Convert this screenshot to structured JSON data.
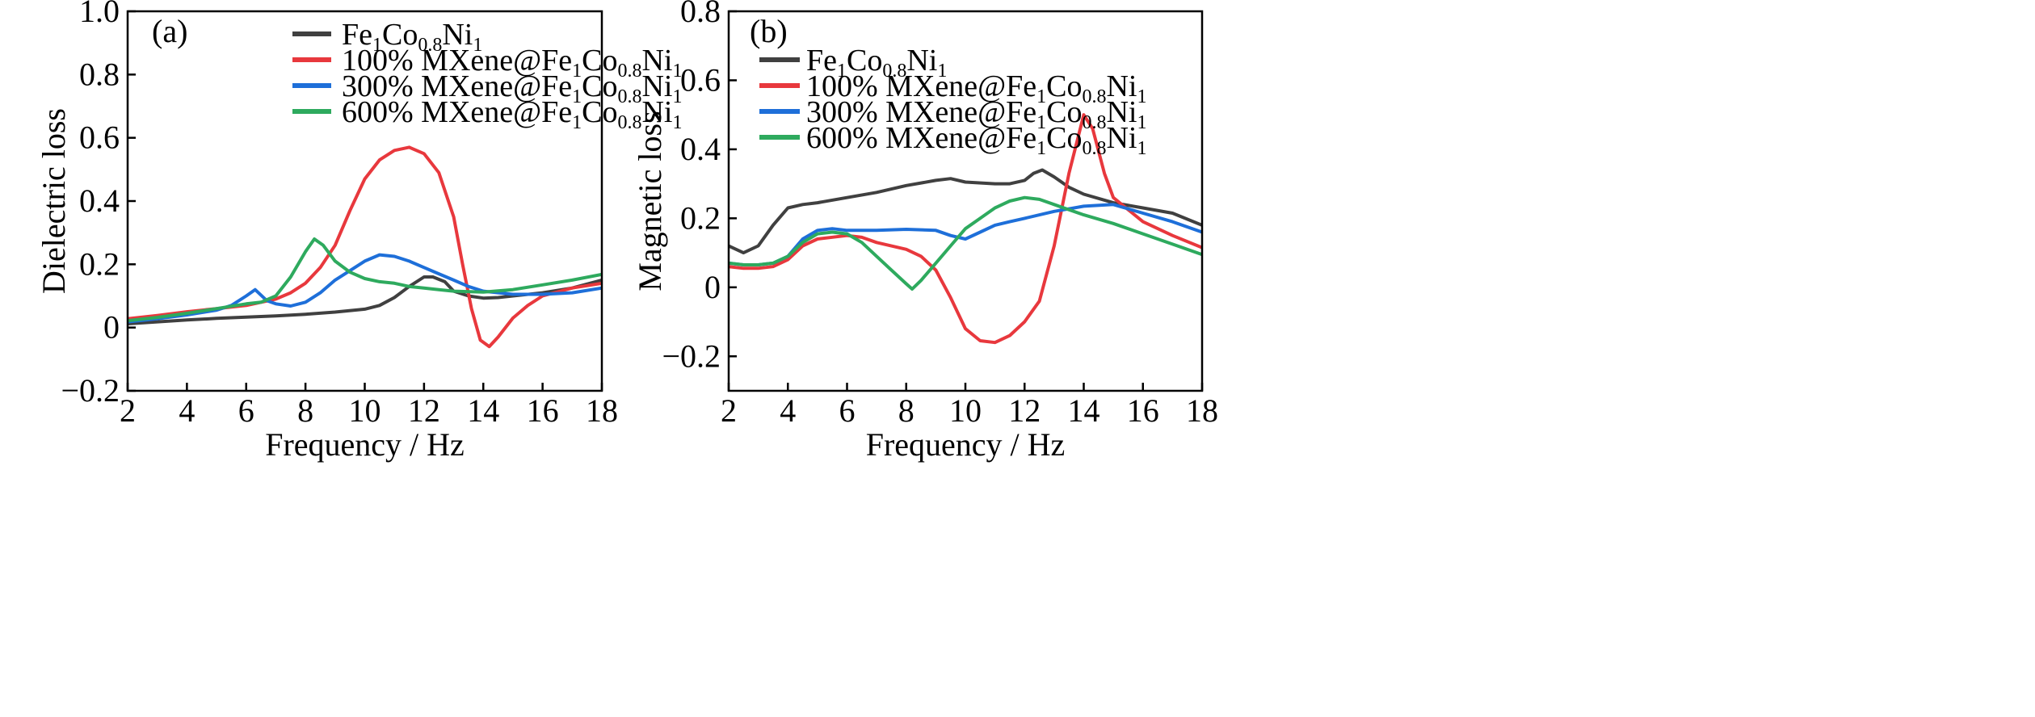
{
  "chart_data": [
    {
      "type": "line",
      "panel_label": "(a)",
      "xlabel": "Frequency / Hz",
      "ylabel": "Dielectric loss",
      "xlim": [
        2,
        18
      ],
      "ylim": [
        -0.2,
        1.0
      ],
      "xticks": [
        2,
        4,
        6,
        8,
        10,
        12,
        14,
        16,
        18
      ],
      "yticks": [
        -0.2,
        0,
        0.2,
        0.4,
        0.6,
        0.8,
        1.0
      ],
      "ytick_labels": [
        "−0.2",
        "0",
        "0.2",
        "0.4",
        "0.6",
        "0.8",
        "1.0"
      ],
      "legend_position": "top-right",
      "series": [
        {
          "name": "Fe1Co0.8Ni1",
          "color": "#404040",
          "x": [
            2,
            3,
            4,
            5,
            6,
            7,
            8,
            9,
            10,
            10.5,
            11,
            11.5,
            12,
            12.3,
            12.7,
            13,
            13.5,
            14,
            14.5,
            15,
            16,
            17,
            18
          ],
          "y": [
            0.012,
            0.018,
            0.024,
            0.029,
            0.033,
            0.037,
            0.042,
            0.049,
            0.058,
            0.07,
            0.095,
            0.13,
            0.16,
            0.16,
            0.145,
            0.115,
            0.1,
            0.093,
            0.095,
            0.1,
            0.11,
            0.125,
            0.15
          ]
        },
        {
          "name": "100% MXene@Fe1Co0.8Ni1",
          "color": "#E8383D",
          "x": [
            2,
            3,
            4,
            5,
            6,
            7,
            7.5,
            8,
            8.5,
            9,
            9.5,
            10,
            10.5,
            11,
            11.5,
            12,
            12.5,
            13,
            13.3,
            13.6,
            13.9,
            14.2,
            14.5,
            15,
            15.5,
            16,
            17,
            18
          ],
          "y": [
            0.028,
            0.038,
            0.05,
            0.06,
            0.07,
            0.09,
            0.11,
            0.14,
            0.19,
            0.26,
            0.37,
            0.47,
            0.53,
            0.56,
            0.57,
            0.55,
            0.49,
            0.35,
            0.2,
            0.06,
            -0.04,
            -0.06,
            -0.03,
            0.03,
            0.07,
            0.1,
            0.125,
            0.14
          ]
        },
        {
          "name": "300% MXene@Fe1Co0.8Ni1",
          "color": "#1E6FD9",
          "x": [
            2,
            3,
            4,
            5,
            5.5,
            6,
            6.3,
            6.7,
            7,
            7.5,
            8,
            8.5,
            9,
            9.5,
            10,
            10.5,
            11,
            11.5,
            12,
            12.5,
            13,
            13.5,
            14,
            15,
            16,
            17,
            18
          ],
          "y": [
            0.018,
            0.028,
            0.04,
            0.055,
            0.07,
            0.1,
            0.12,
            0.085,
            0.075,
            0.068,
            0.08,
            0.11,
            0.15,
            0.18,
            0.21,
            0.23,
            0.225,
            0.21,
            0.19,
            0.17,
            0.15,
            0.13,
            0.115,
            0.105,
            0.105,
            0.11,
            0.125
          ]
        },
        {
          "name": "600% MXene@Fe1Co0.8Ni1",
          "color": "#2EAA5E",
          "x": [
            2,
            3,
            4,
            5,
            6,
            6.5,
            7,
            7.5,
            8,
            8.3,
            8.6,
            9,
            9.5,
            10,
            10.5,
            11,
            11.5,
            12,
            12.5,
            13,
            14,
            15,
            16,
            17,
            18
          ],
          "y": [
            0.022,
            0.032,
            0.045,
            0.06,
            0.075,
            0.08,
            0.1,
            0.16,
            0.24,
            0.28,
            0.26,
            0.21,
            0.175,
            0.155,
            0.145,
            0.14,
            0.13,
            0.125,
            0.12,
            0.115,
            0.112,
            0.12,
            0.135,
            0.15,
            0.168
          ]
        }
      ]
    },
    {
      "type": "line",
      "panel_label": "(b)",
      "xlabel": "Frequency / Hz",
      "ylabel": "Magnetic loss",
      "xlim": [
        2,
        18
      ],
      "ylim": [
        -0.3,
        0.8
      ],
      "xticks": [
        2,
        4,
        6,
        8,
        10,
        12,
        14,
        16,
        18
      ],
      "yticks": [
        -0.2,
        0,
        0.2,
        0.4,
        0.6,
        0.8
      ],
      "ytick_labels": [
        "−0.2",
        "0",
        "0.2",
        "0.4",
        "0.6",
        "0.8"
      ],
      "legend_position": "top-left",
      "series": [
        {
          "name": "Fe1Co0.8Ni1",
          "color": "#404040",
          "x": [
            2,
            2.5,
            3,
            3.5,
            4,
            4.5,
            5,
            6,
            7,
            8,
            9,
            9.5,
            10,
            11,
            11.5,
            12,
            12.3,
            12.6,
            13,
            13.5,
            14,
            15,
            16,
            17,
            18
          ],
          "y": [
            0.12,
            0.1,
            0.12,
            0.18,
            0.23,
            0.24,
            0.245,
            0.26,
            0.275,
            0.295,
            0.31,
            0.315,
            0.305,
            0.3,
            0.3,
            0.31,
            0.33,
            0.34,
            0.32,
            0.29,
            0.27,
            0.245,
            0.23,
            0.215,
            0.18
          ]
        },
        {
          "name": "100% MXene@Fe1Co0.8Ni1",
          "color": "#E8383D",
          "x": [
            2,
            2.5,
            3,
            3.5,
            4,
            4.5,
            5,
            6,
            6.5,
            7,
            8,
            8.5,
            9,
            9.5,
            10,
            10.5,
            11,
            11.5,
            12,
            12.5,
            13,
            13.5,
            14,
            14.3,
            14.7,
            15,
            16,
            17,
            18
          ],
          "y": [
            0.06,
            0.055,
            0.055,
            0.06,
            0.08,
            0.12,
            0.14,
            0.15,
            0.145,
            0.13,
            0.11,
            0.09,
            0.05,
            -0.03,
            -0.12,
            -0.155,
            -0.16,
            -0.14,
            -0.1,
            -0.04,
            0.12,
            0.33,
            0.5,
            0.46,
            0.33,
            0.26,
            0.19,
            0.15,
            0.115
          ]
        },
        {
          "name": "300% MXene@Fe1Co0.8Ni1",
          "color": "#1E6FD9",
          "x": [
            2,
            2.5,
            3,
            3.5,
            4,
            4.5,
            5,
            5.5,
            6,
            7,
            8,
            9,
            9.5,
            10,
            10.5,
            11,
            11.5,
            12,
            13,
            14,
            15,
            16,
            17,
            18
          ],
          "y": [
            0.07,
            0.065,
            0.065,
            0.07,
            0.09,
            0.14,
            0.165,
            0.17,
            0.165,
            0.165,
            0.168,
            0.165,
            0.15,
            0.14,
            0.16,
            0.18,
            0.19,
            0.2,
            0.22,
            0.235,
            0.24,
            0.215,
            0.19,
            0.16
          ]
        },
        {
          "name": "600% MXene@Fe1Co0.8Ni1",
          "color": "#2EAA5E",
          "x": [
            2,
            2.5,
            3,
            3.5,
            4,
            4.5,
            5,
            5.5,
            6,
            6.5,
            7,
            7.5,
            8,
            8.2,
            8.5,
            9,
            9.5,
            10,
            10.5,
            11,
            11.5,
            12,
            12.5,
            13,
            14,
            15,
            16,
            17,
            18
          ],
          "y": [
            0.07,
            0.065,
            0.065,
            0.07,
            0.09,
            0.13,
            0.155,
            0.16,
            0.155,
            0.13,
            0.09,
            0.05,
            0.01,
            -0.005,
            0.02,
            0.07,
            0.12,
            0.17,
            0.2,
            0.23,
            0.25,
            0.26,
            0.255,
            0.24,
            0.21,
            0.185,
            0.155,
            0.125,
            0.095
          ]
        }
      ]
    }
  ]
}
